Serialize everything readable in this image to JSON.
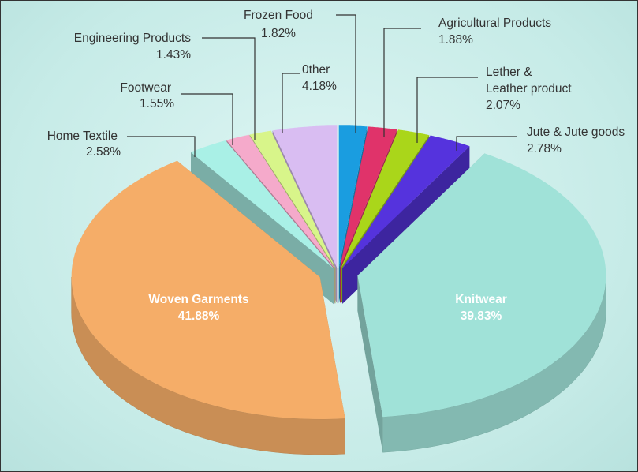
{
  "chart_data": {
    "type": "pie3d",
    "categories": [
      "Frozen Food",
      "Agricultural Products",
      "Lether &\nLeather product",
      "Jute & Jute goods",
      "Knitwear",
      "Woven Garments",
      "Home Textile",
      "Footwear",
      "Engineering Products",
      "0ther"
    ],
    "values": [
      1.82,
      1.88,
      2.07,
      2.78,
      39.83,
      41.88,
      2.58,
      1.55,
      1.43,
      4.18
    ],
    "value_labels": [
      "1.82%",
      "1.88%",
      "2.07%",
      "2.78%",
      "39.83%",
      "41.88%",
      "2.58%",
      "1.55%",
      "1.43%",
      "4.18%"
    ],
    "colors": [
      "#1a9de0",
      "#e0336a",
      "#aad61a",
      "#5533dd",
      "#a0e2d8",
      "#f5ad68",
      "#a9f0e6",
      "#f5aacb",
      "#d8f58a",
      "#d9bdf2"
    ]
  }
}
